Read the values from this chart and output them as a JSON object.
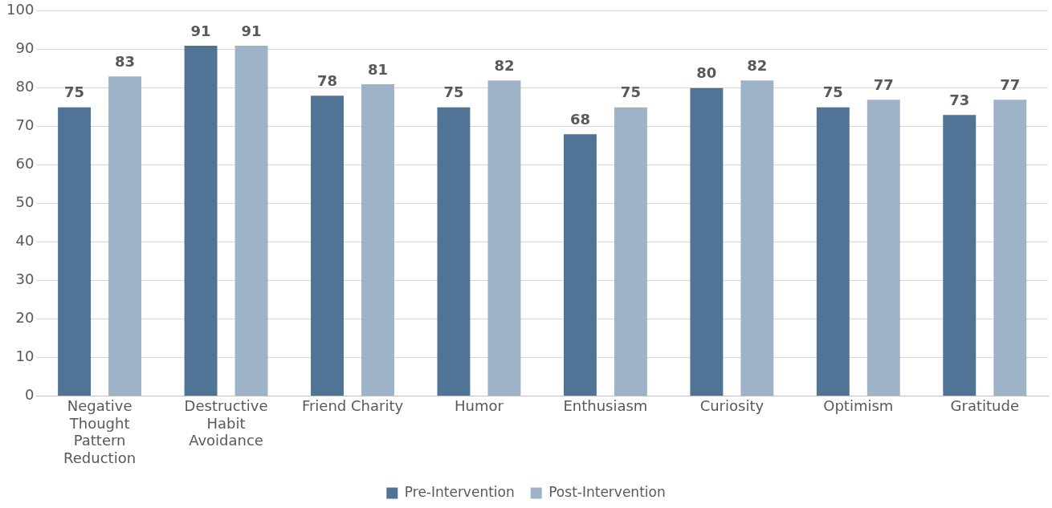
{
  "chart_data": {
    "type": "bar",
    "categories": [
      "Negative Thought Pattern Reduction",
      "Destructive Habit Avoidance",
      "Friend Charity",
      "Humor",
      "Enthusiasm",
      "Curiosity",
      "Optimism",
      "Gratitude"
    ],
    "series": [
      {
        "name": "Pre-Intervention",
        "color": "#4f7496",
        "values": [
          75,
          91,
          78,
          75,
          68,
          80,
          75,
          73
        ]
      },
      {
        "name": "Post-Intervention",
        "color": "#9fb3c8",
        "values": [
          83,
          91,
          81,
          82,
          75,
          82,
          77,
          77
        ]
      }
    ],
    "ylim": [
      0,
      100
    ],
    "yticks": [
      0,
      10,
      20,
      30,
      40,
      50,
      60,
      70,
      80,
      90,
      100
    ],
    "grid": "y",
    "legend": "bottom",
    "data_labels": true
  }
}
